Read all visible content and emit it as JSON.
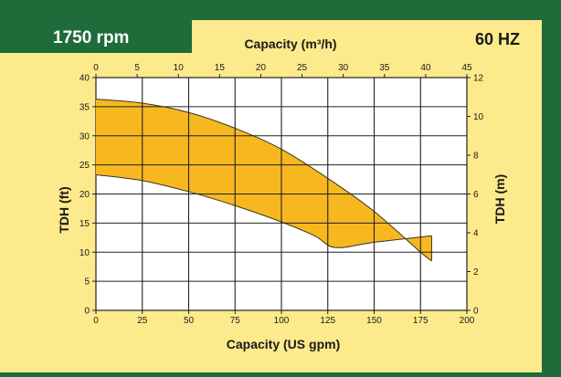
{
  "header": {
    "rpm_label": "1750 rpm",
    "hz_label": "60 HZ"
  },
  "colors": {
    "green": "#1f6b3a",
    "panel": "#fcea8c",
    "plot_bg": "#ffffff",
    "band": "#f6b81e",
    "band_edge": "#3a3320",
    "grid": "#222222"
  },
  "chart_data": {
    "type": "area",
    "xlabel": "Capacity (US gpm)",
    "x2label": "Capacity (m³/h)",
    "ylabel": "TDH (ft)",
    "y2label": "TDH (m)",
    "xlim": [
      0,
      200
    ],
    "ylim": [
      0,
      40
    ],
    "x2lim": [
      0,
      45
    ],
    "y2lim": [
      0,
      12
    ],
    "xticks": [
      0,
      25,
      50,
      75,
      100,
      125,
      150,
      175,
      200
    ],
    "yticks": [
      0,
      5,
      10,
      15,
      20,
      25,
      30,
      35,
      40
    ],
    "x2ticks": [
      0,
      5,
      10,
      15,
      20,
      25,
      30,
      35,
      40,
      45
    ],
    "y2ticks": [
      0,
      2,
      4,
      6,
      8,
      10,
      12
    ],
    "grid": true,
    "band": {
      "upper": [
        {
          "x": 0,
          "y": 36.3
        },
        {
          "x": 25,
          "y": 35.6
        },
        {
          "x": 50,
          "y": 34.0
        },
        {
          "x": 75,
          "y": 31.3
        },
        {
          "x": 100,
          "y": 27.7
        },
        {
          "x": 125,
          "y": 22.7
        },
        {
          "x": 150,
          "y": 17.0
        },
        {
          "x": 175,
          "y": 10.0
        },
        {
          "x": 181,
          "y": 8.5
        }
      ],
      "lower": [
        {
          "x": 0,
          "y": 23.3
        },
        {
          "x": 25,
          "y": 22.3
        },
        {
          "x": 50,
          "y": 20.4
        },
        {
          "x": 75,
          "y": 18.0
        },
        {
          "x": 100,
          "y": 15.2
        },
        {
          "x": 118,
          "y": 12.8
        },
        {
          "x": 129,
          "y": 10.8
        },
        {
          "x": 150,
          "y": 11.7
        },
        {
          "x": 175,
          "y": 12.6
        },
        {
          "x": 181,
          "y": 12.8
        }
      ]
    }
  }
}
